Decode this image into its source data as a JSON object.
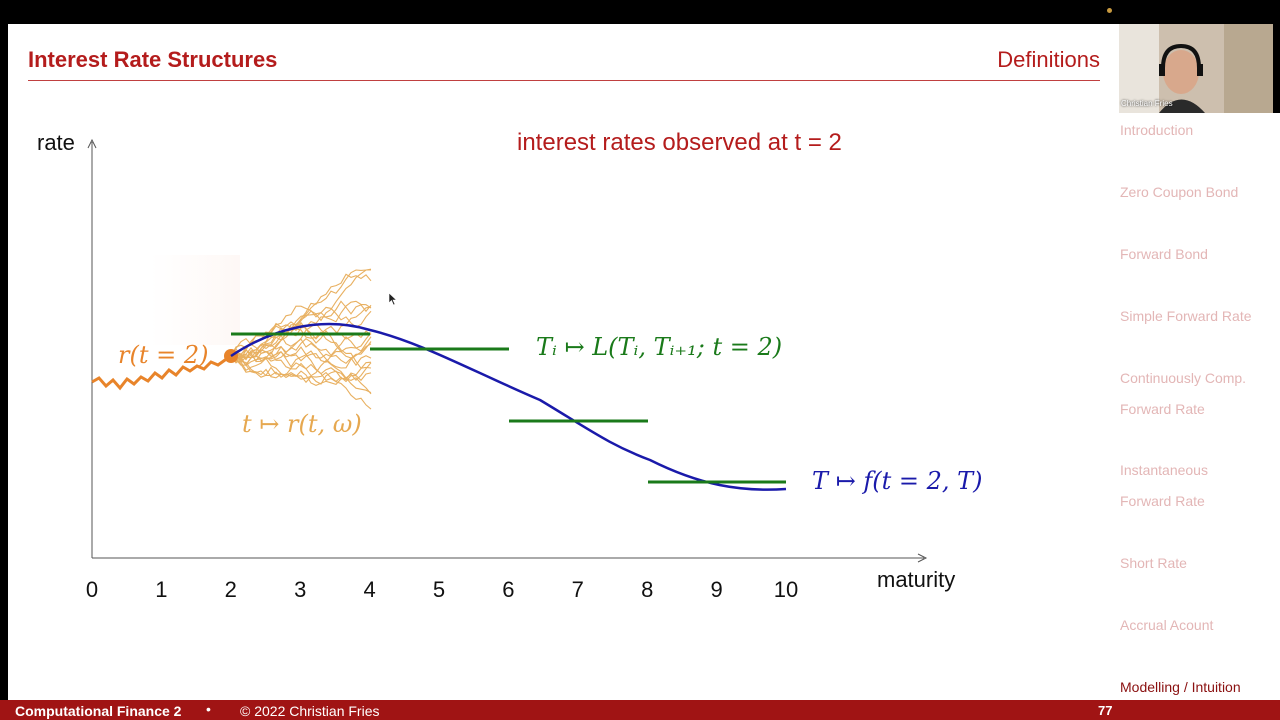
{
  "header": {
    "title": "Interest Rate Structures",
    "section": "Definitions"
  },
  "video": {
    "name": "Christian Fries"
  },
  "nav": {
    "items": [
      "Introduction",
      "Zero Coupon Bond",
      "Forward Bond",
      "Simple Forward Rate",
      "Continuously Comp.",
      "Forward Rate",
      "Instantaneous",
      "Forward Rate",
      "Short Rate",
      "Accrual Acount",
      "Modelling / Intuition"
    ],
    "active_index": 10
  },
  "diagram": {
    "y_label": "rate",
    "x_label": "maturity",
    "x_ticks": [
      "0",
      "1",
      "2",
      "3",
      "4",
      "5",
      "6",
      "7",
      "8",
      "9",
      "10"
    ],
    "annotation": "interest rates observed at t = 2",
    "short_rate_label": "r(t = 2)",
    "paths_label": "t ↦ r(t, ω)",
    "libor_label": "Tᵢ ↦ L(Tᵢ, Tᵢ₊₁; t = 2)",
    "forward_label": "T ↦ f(t = 2, T)",
    "colors": {
      "accent": "#b41c1c",
      "short_rate": "#e8842a",
      "paths": "#e6a850",
      "libor": "#1a7a1a",
      "forward": "#1a1aaa"
    }
  },
  "footer": {
    "course": "Computational Finance 2",
    "separator": "•",
    "copyright": "© 2022 Christian Fries",
    "page": "77"
  }
}
